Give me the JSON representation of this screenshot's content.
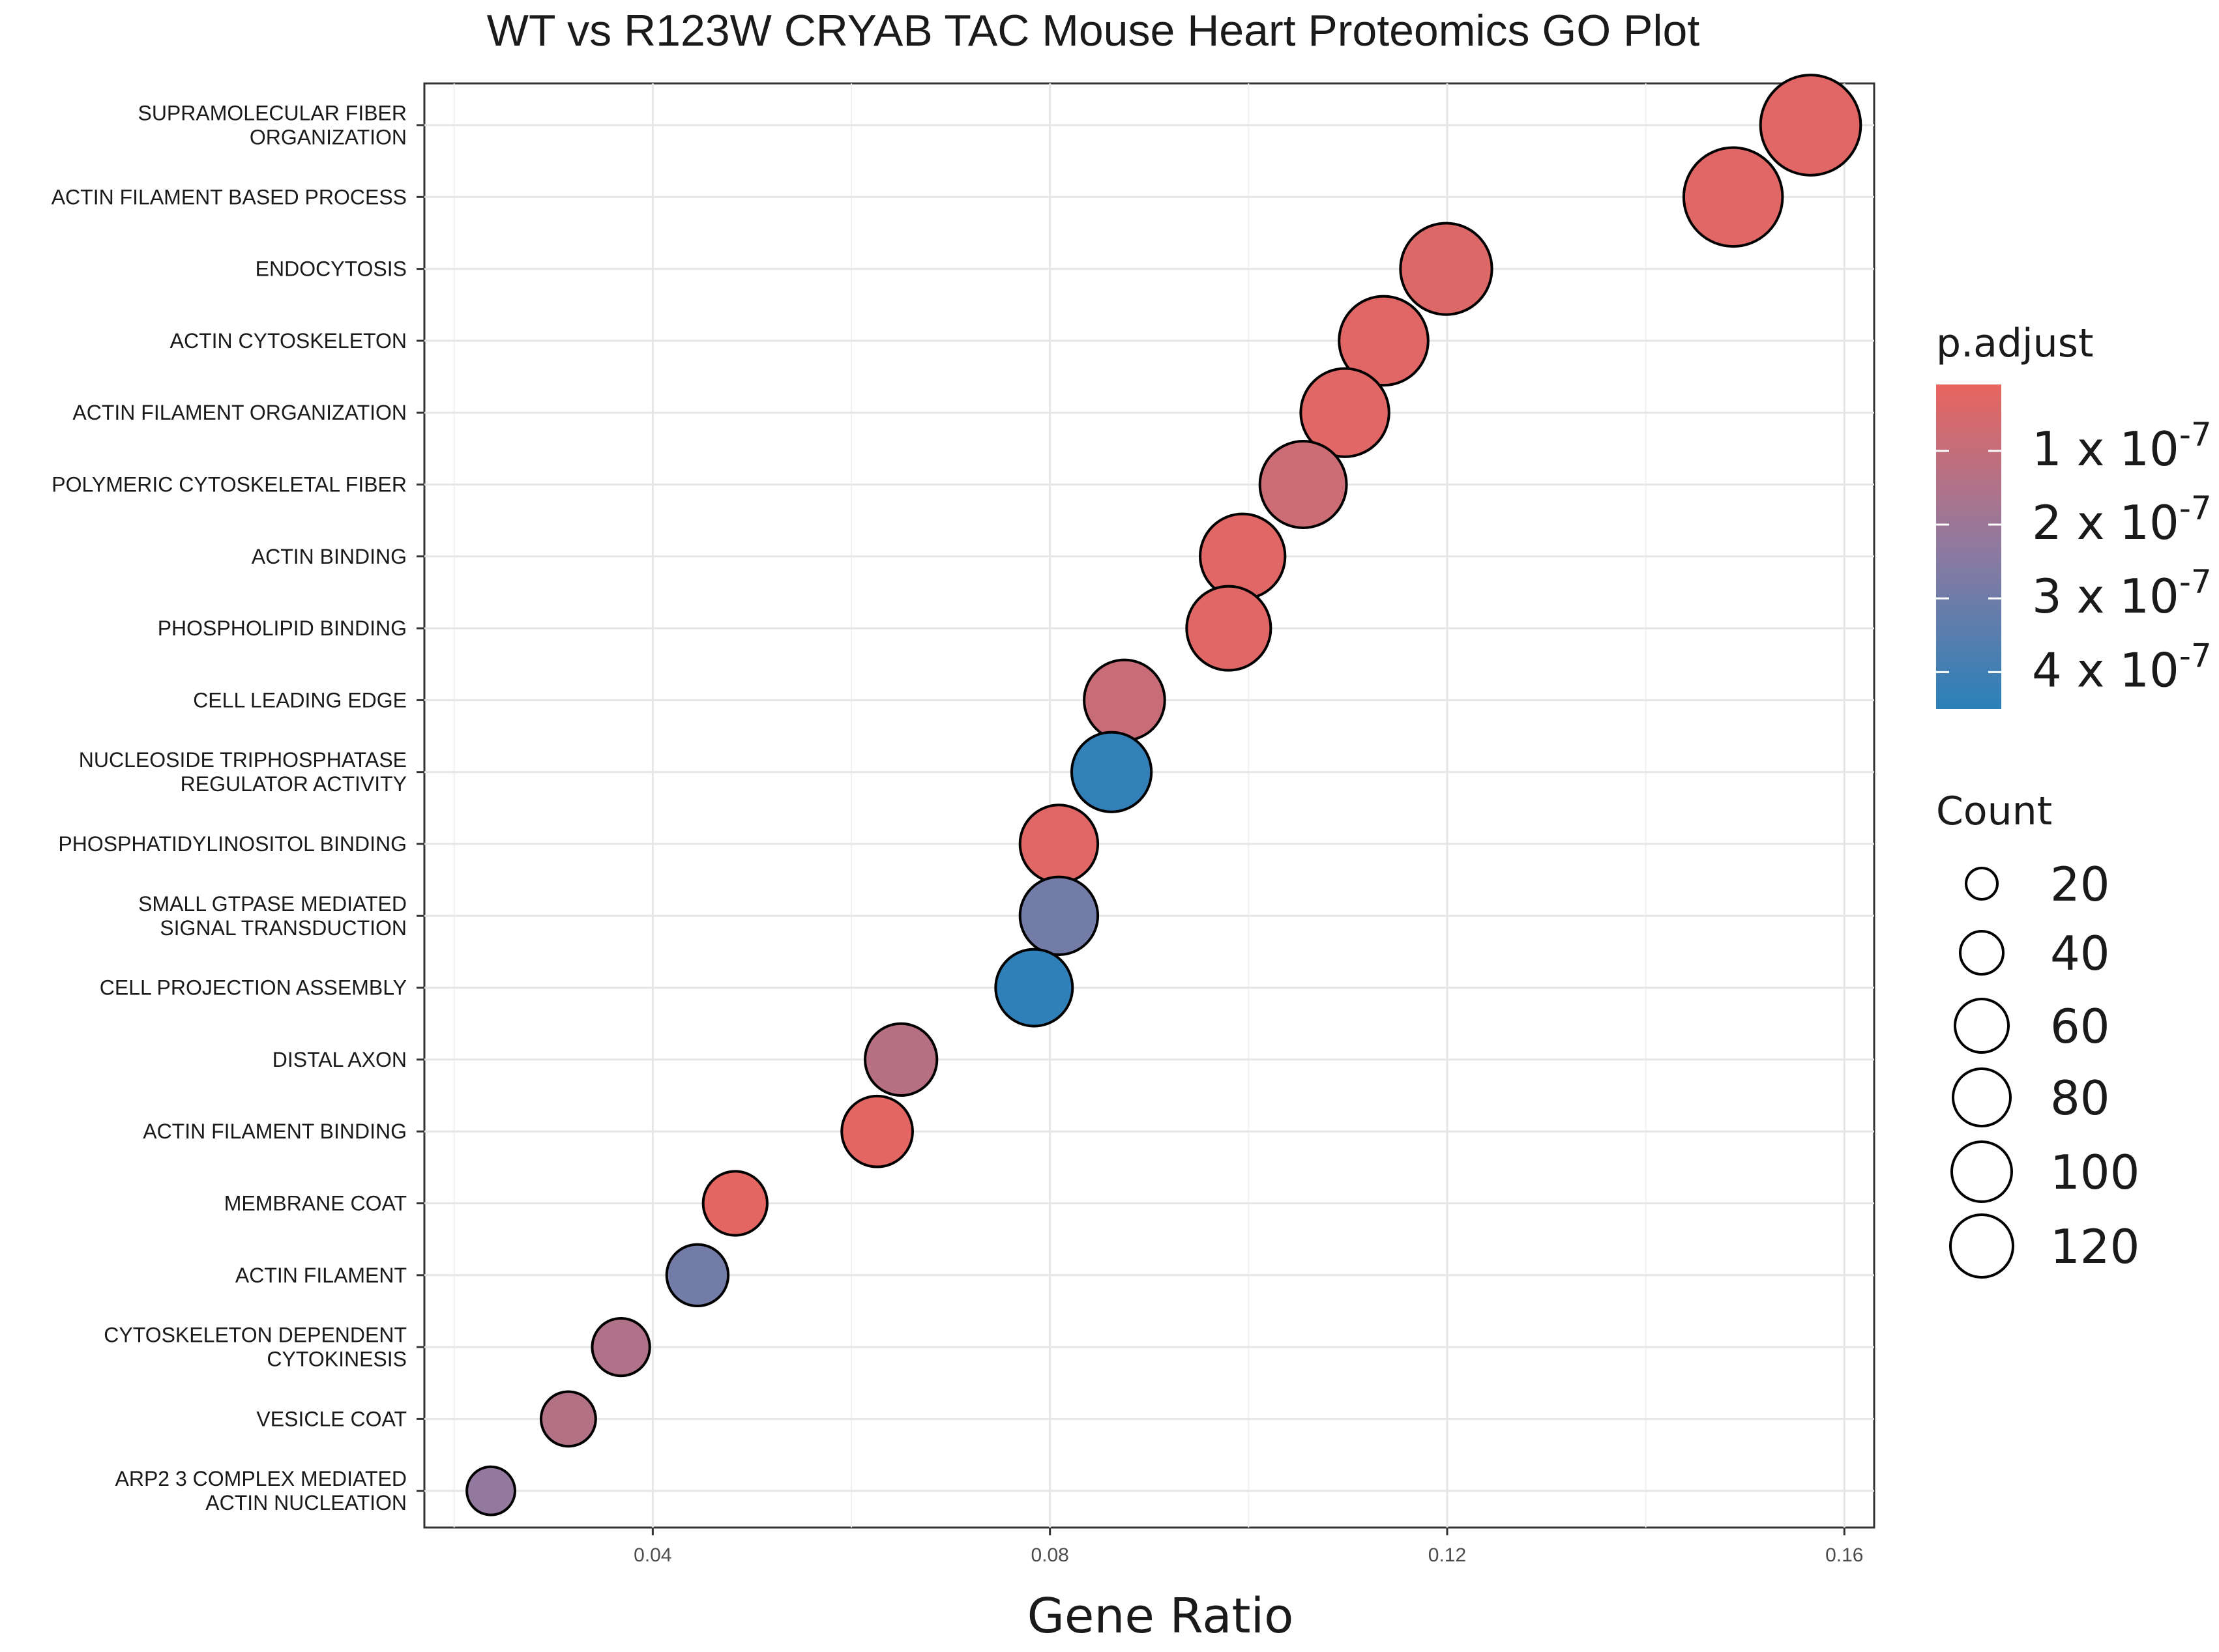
{
  "chart_data": {
    "type": "scatter",
    "title": "WT vs R123W CRYAB TAC Mouse Heart Proteomics GO Plot",
    "xlabel": "Gene Ratio",
    "ylabel": "",
    "xlim": [
      0.017,
      0.163
    ],
    "xticks": [
      0.04,
      0.08,
      0.12,
      0.16
    ],
    "xtick_labels": [
      "0.04",
      "0.08",
      "0.12",
      "0.16"
    ],
    "grid": true,
    "categories": [
      "SUPRAMOLECULAR FIBER ORGANIZATION",
      "ACTIN FILAMENT BASED PROCESS",
      "ENDOCYTOSIS",
      "ACTIN CYTOSKELETON",
      "ACTIN FILAMENT ORGANIZATION",
      "POLYMERIC CYTOSKELETAL FIBER",
      "ACTIN BINDING",
      "PHOSPHOLIPID BINDING",
      "CELL LEADING EDGE",
      "NUCLEOSIDE TRIPHOSPHATASE REGULATOR ACTIVITY",
      "PHOSPHATIDYLINOSITOL BINDING",
      "SMALL GTPASE MEDIATED SIGNAL TRANSDUCTION",
      "CELL PROJECTION ASSEMBLY",
      "DISTAL AXON",
      "ACTIN FILAMENT BINDING",
      "MEMBRANE COAT",
      "ACTIN FILAMENT",
      "CYTOSKELETON DEPENDENT CYTOKINESIS",
      "VESICLE COAT",
      "ARP2 3 COMPLEX MEDIATED ACTIN NUCLEATION"
    ],
    "category_lines": [
      [
        "SUPRAMOLECULAR FIBER",
        "ORGANIZATION"
      ],
      [
        "ACTIN FILAMENT BASED PROCESS"
      ],
      [
        "ENDOCYTOSIS"
      ],
      [
        "ACTIN CYTOSKELETON"
      ],
      [
        "ACTIN FILAMENT ORGANIZATION"
      ],
      [
        "POLYMERIC CYTOSKELETAL FIBER"
      ],
      [
        "ACTIN BINDING"
      ],
      [
        "PHOSPHOLIPID BINDING"
      ],
      [
        "CELL LEADING EDGE"
      ],
      [
        "NUCLEOSIDE TRIPHOSPHATASE",
        "REGULATOR ACTIVITY"
      ],
      [
        "PHOSPHATIDYLINOSITOL BINDING"
      ],
      [
        "SMALL GTPASE MEDIATED",
        "SIGNAL TRANSDUCTION"
      ],
      [
        "CELL PROJECTION ASSEMBLY"
      ],
      [
        "DISTAL AXON"
      ],
      [
        "ACTIN FILAMENT BINDING"
      ],
      [
        "MEMBRANE COAT"
      ],
      [
        "ACTIN FILAMENT"
      ],
      [
        "CYTOSKELETON DEPENDENT",
        "CYTOKINESIS"
      ],
      [
        "VESICLE COAT"
      ],
      [
        "ARP2 3 COMPLEX MEDIATED",
        "ACTIN NUCLEATION"
      ]
    ],
    "gene_ratio": [
      0.1566,
      0.1488,
      0.1199,
      0.1136,
      0.1097,
      0.1055,
      0.0994,
      0.098,
      0.0875,
      0.0862,
      0.0809,
      0.0809,
      0.0784,
      0.065,
      0.0626,
      0.0483,
      0.0445,
      0.0368,
      0.0315,
      0.0237
    ],
    "count": [
      122,
      118,
      98,
      92,
      90,
      86,
      82,
      80,
      72,
      70,
      66,
      66,
      64,
      54,
      52,
      40,
      36,
      30,
      26,
      18
    ],
    "p_adjust": [
      3e-08,
      3e-08,
      4e-08,
      3e-08,
      3e-08,
      8e-08,
      3e-08,
      3e-08,
      9e-08,
      4.3e-07,
      3e-08,
      2.9e-07,
      4.4e-07,
      1.3e-07,
      2e-08,
      2e-08,
      2.9e-07,
      1.5e-07,
      1.4e-07,
      2.2e-07
    ],
    "color_scale": {
      "title": "p.adjust",
      "domain": [
        1e-08,
        4.5e-07
      ],
      "low_color": "#e8655f",
      "mid_color": "#8f7aa0",
      "high_color": "#2a80b9",
      "breaks": [
        1e-07,
        2e-07,
        3e-07,
        4e-07
      ],
      "break_labels": [
        {
          "prefix": "1 x 10",
          "exp": "-7"
        },
        {
          "prefix": "2 x 10",
          "exp": "-7"
        },
        {
          "prefix": "3 x 10",
          "exp": "-7"
        },
        {
          "prefix": "4 x 10",
          "exp": "-7"
        }
      ]
    },
    "size_scale": {
      "title": "Count",
      "breaks": [
        20,
        40,
        60,
        80,
        100,
        120
      ],
      "break_labels": [
        "20",
        "40",
        "60",
        "80",
        "100",
        "120"
      ]
    }
  }
}
